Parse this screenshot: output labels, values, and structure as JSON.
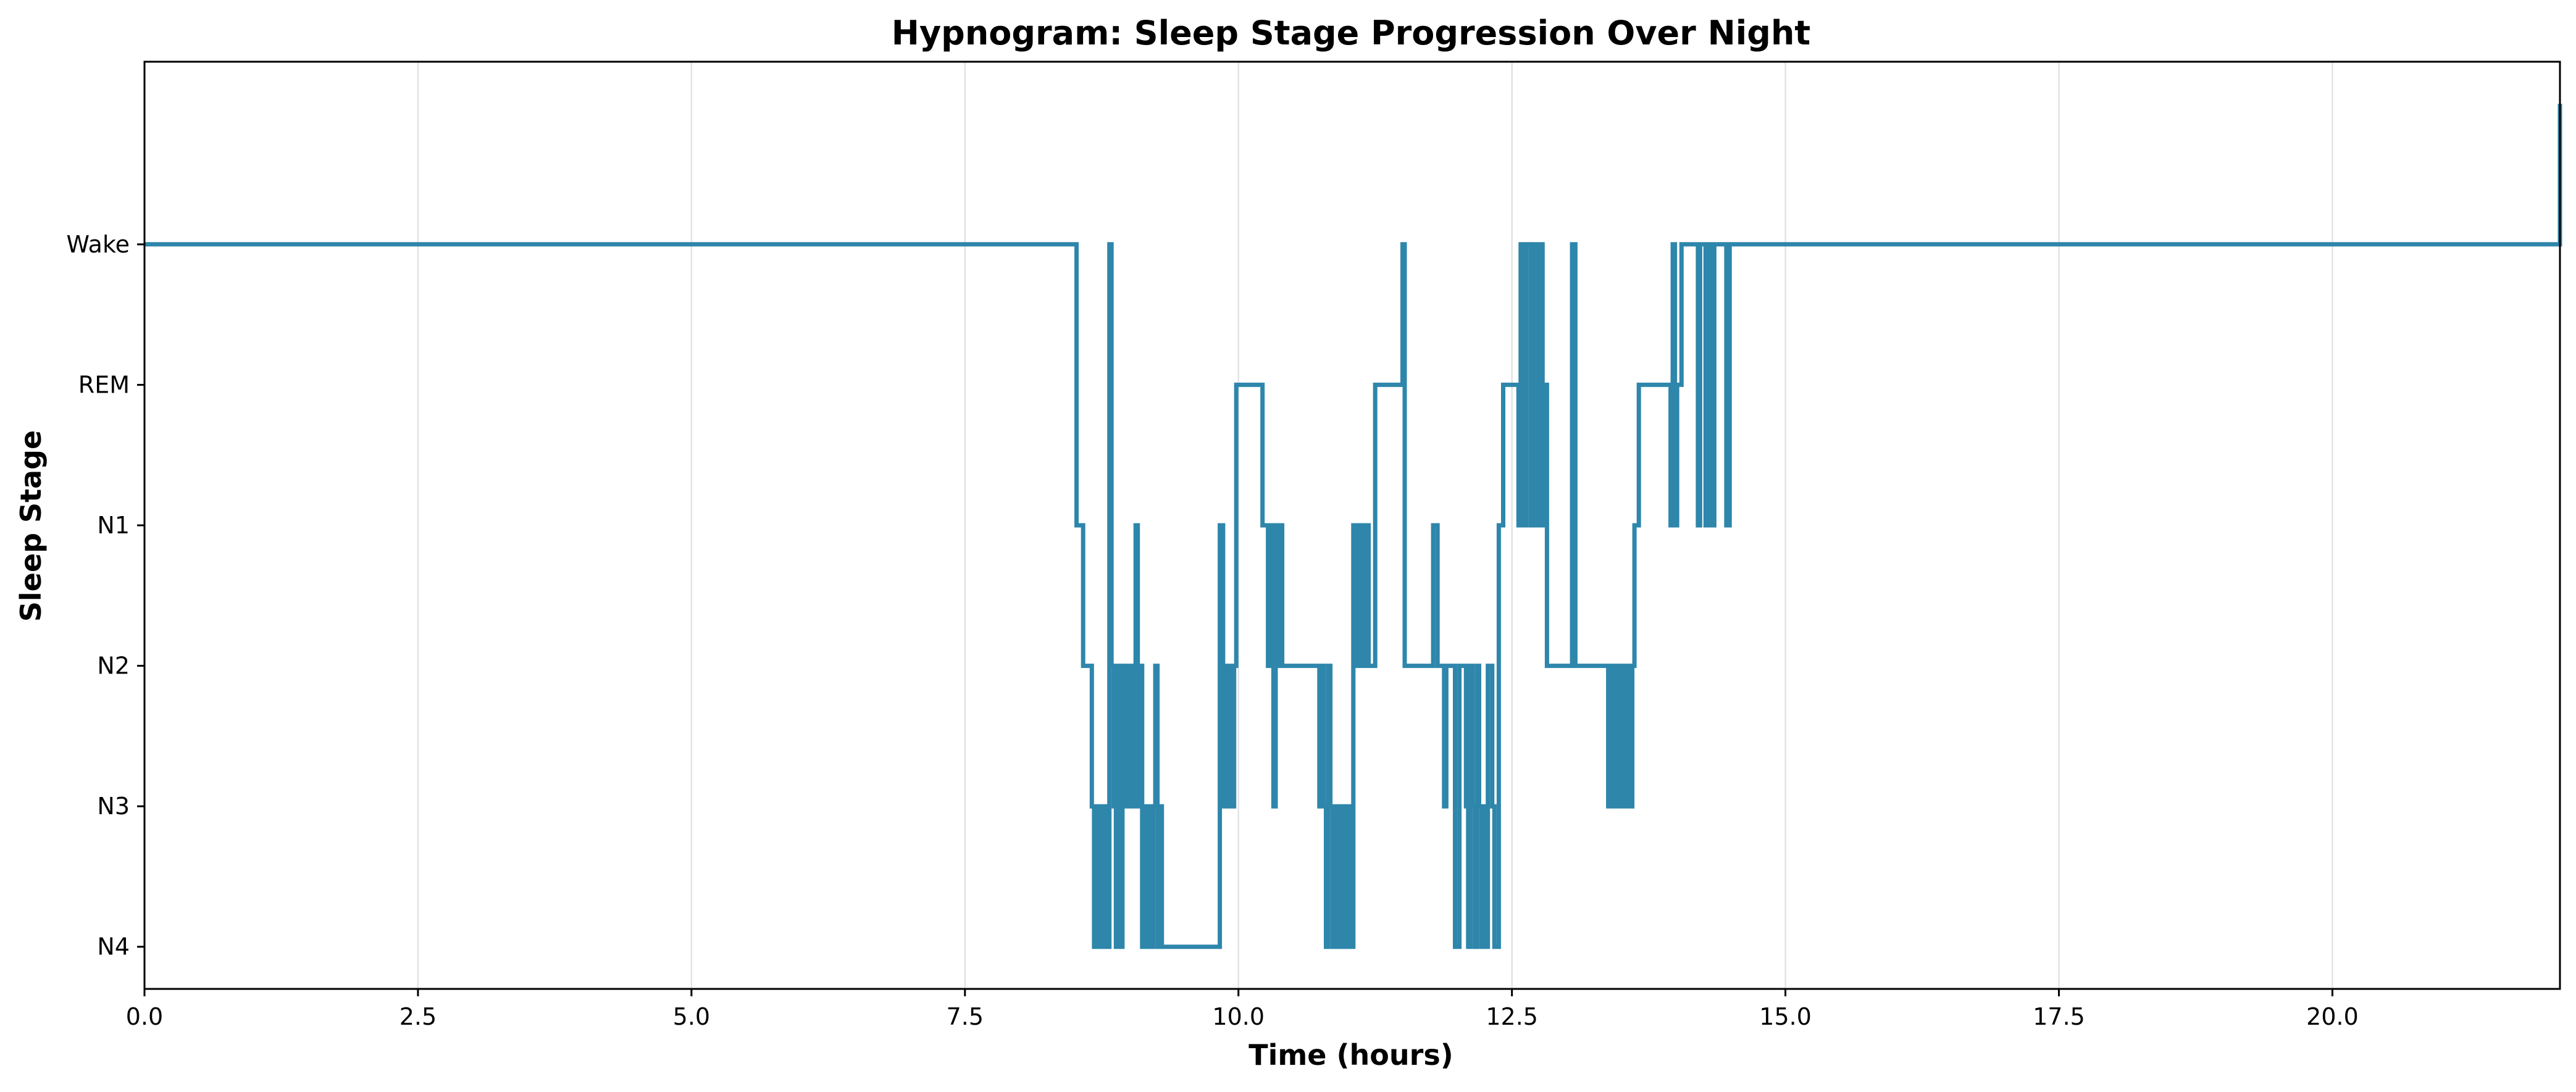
{
  "chart_data": {
    "type": "line",
    "title": "Hypnogram: Sleep Stage Progression Over Night",
    "xlabel": "Time (hours)",
    "ylabel": "Sleep Stage",
    "xlim": [
      0,
      22.08
    ],
    "ylim": [
      -0.3,
      6.3
    ],
    "grid": "vertical",
    "colors": {
      "line": "#2e86ab"
    },
    "x_ticks": [
      {
        "value": 0.0,
        "label": "0.0"
      },
      {
        "value": 2.5,
        "label": "2.5"
      },
      {
        "value": 5.0,
        "label": "5.0"
      },
      {
        "value": 7.5,
        "label": "7.5"
      },
      {
        "value": 10.0,
        "label": "10.0"
      },
      {
        "value": 12.5,
        "label": "12.5"
      },
      {
        "value": 15.0,
        "label": "15.0"
      },
      {
        "value": 17.5,
        "label": "17.5"
      },
      {
        "value": 20.0,
        "label": "20.0"
      }
    ],
    "y_ticks": [
      {
        "value": 0,
        "label": "N4"
      },
      {
        "value": 1,
        "label": "N3"
      },
      {
        "value": 2,
        "label": "N2"
      },
      {
        "value": 3,
        "label": "N1"
      },
      {
        "value": 4,
        "label": "REM"
      },
      {
        "value": 5,
        "label": "Wake"
      }
    ],
    "series": [
      {
        "step": "post",
        "points": [
          [
            0.0,
            5
          ],
          [
            8.5,
            5
          ],
          [
            8.52,
            3
          ],
          [
            8.55,
            3
          ],
          [
            8.58,
            2
          ],
          [
            8.65,
            2
          ],
          [
            8.66,
            1
          ],
          [
            8.68,
            0
          ],
          [
            8.7,
            1
          ],
          [
            8.72,
            0
          ],
          [
            8.74,
            1
          ],
          [
            8.76,
            0
          ],
          [
            8.78,
            1
          ],
          [
            8.8,
            0
          ],
          [
            8.82,
            5
          ],
          [
            8.84,
            2
          ],
          [
            8.86,
            1
          ],
          [
            8.88,
            0
          ],
          [
            8.9,
            2
          ],
          [
            8.92,
            0
          ],
          [
            8.94,
            2
          ],
          [
            8.96,
            1
          ],
          [
            8.98,
            2
          ],
          [
            9.0,
            1
          ],
          [
            9.02,
            2
          ],
          [
            9.04,
            1
          ],
          [
            9.06,
            3
          ],
          [
            9.08,
            1
          ],
          [
            9.1,
            2
          ],
          [
            9.12,
            0
          ],
          [
            9.14,
            1
          ],
          [
            9.16,
            0
          ],
          [
            9.18,
            1
          ],
          [
            9.2,
            0
          ],
          [
            9.22,
            1
          ],
          [
            9.24,
            2
          ],
          [
            9.26,
            0
          ],
          [
            9.28,
            1
          ],
          [
            9.3,
            0
          ],
          [
            9.83,
            3
          ],
          [
            9.86,
            1
          ],
          [
            9.88,
            2
          ],
          [
            9.9,
            1
          ],
          [
            9.92,
            2
          ],
          [
            9.94,
            1
          ],
          [
            9.96,
            2
          ],
          [
            9.98,
            4
          ],
          [
            10.22,
            3
          ],
          [
            10.27,
            2
          ],
          [
            10.3,
            3
          ],
          [
            10.32,
            1
          ],
          [
            10.34,
            3
          ],
          [
            10.36,
            2
          ],
          [
            10.38,
            3
          ],
          [
            10.4,
            2
          ],
          [
            10.74,
            1
          ],
          [
            10.76,
            2
          ],
          [
            10.78,
            1
          ],
          [
            10.8,
            0
          ],
          [
            10.82,
            2
          ],
          [
            10.84,
            1
          ],
          [
            10.86,
            0
          ],
          [
            10.88,
            1
          ],
          [
            10.9,
            0
          ],
          [
            10.92,
            1
          ],
          [
            10.94,
            0
          ],
          [
            10.96,
            1
          ],
          [
            10.98,
            0
          ],
          [
            11.0,
            1
          ],
          [
            11.02,
            0
          ],
          [
            11.05,
            3
          ],
          [
            11.07,
            2
          ],
          [
            11.09,
            3
          ],
          [
            11.11,
            2
          ],
          [
            11.13,
            3
          ],
          [
            11.15,
            2
          ],
          [
            11.17,
            3
          ],
          [
            11.19,
            2
          ],
          [
            11.25,
            4
          ],
          [
            11.5,
            5
          ],
          [
            11.52,
            2
          ],
          [
            11.78,
            3
          ],
          [
            11.82,
            2
          ],
          [
            11.88,
            1
          ],
          [
            11.9,
            2
          ],
          [
            11.98,
            0
          ],
          [
            12.02,
            2
          ],
          [
            12.08,
            1
          ],
          [
            12.1,
            0
          ],
          [
            12.12,
            2
          ],
          [
            12.14,
            1
          ],
          [
            12.16,
            0
          ],
          [
            12.18,
            2
          ],
          [
            12.2,
            1
          ],
          [
            12.22,
            0
          ],
          [
            12.24,
            1
          ],
          [
            12.26,
            0
          ],
          [
            12.28,
            2
          ],
          [
            12.32,
            1
          ],
          [
            12.34,
            0
          ],
          [
            12.38,
            3
          ],
          [
            12.42,
            4
          ],
          [
            12.56,
            3
          ],
          [
            12.58,
            5
          ],
          [
            12.6,
            3
          ],
          [
            12.63,
            5
          ],
          [
            12.67,
            3
          ],
          [
            12.7,
            5
          ],
          [
            12.73,
            3
          ],
          [
            12.75,
            5
          ],
          [
            12.78,
            3
          ],
          [
            12.8,
            4
          ],
          [
            12.82,
            2
          ],
          [
            13.05,
            5
          ],
          [
            13.08,
            2
          ],
          [
            13.38,
            1
          ],
          [
            13.4,
            2
          ],
          [
            13.42,
            1
          ],
          [
            13.44,
            2
          ],
          [
            13.46,
            1
          ],
          [
            13.48,
            2
          ],
          [
            13.5,
            1
          ],
          [
            13.52,
            2
          ],
          [
            13.54,
            1
          ],
          [
            13.56,
            2
          ],
          [
            13.58,
            1
          ],
          [
            13.6,
            2
          ],
          [
            13.62,
            3
          ],
          [
            13.66,
            4
          ],
          [
            13.95,
            3
          ],
          [
            13.97,
            5
          ],
          [
            13.99,
            3
          ],
          [
            14.01,
            4
          ],
          [
            14.05,
            5
          ],
          [
            14.2,
            3
          ],
          [
            14.22,
            5
          ],
          [
            14.27,
            3
          ],
          [
            14.3,
            5
          ],
          [
            14.33,
            3
          ],
          [
            14.35,
            5
          ],
          [
            14.46,
            3
          ],
          [
            14.49,
            5
          ],
          [
            22.08,
            5
          ],
          [
            22.08,
            6
          ]
        ]
      }
    ]
  }
}
